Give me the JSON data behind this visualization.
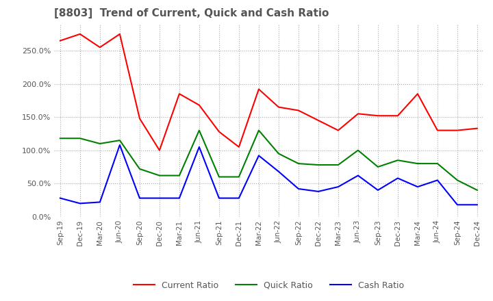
{
  "title": "[8803]  Trend of Current, Quick and Cash Ratio",
  "x_labels": [
    "Sep-19",
    "Dec-19",
    "Mar-20",
    "Jun-20",
    "Sep-20",
    "Dec-20",
    "Mar-21",
    "Jun-21",
    "Sep-21",
    "Dec-21",
    "Mar-22",
    "Jun-22",
    "Sep-22",
    "Dec-22",
    "Mar-23",
    "Jun-23",
    "Sep-23",
    "Dec-23",
    "Mar-24",
    "Jun-24",
    "Sep-24",
    "Dec-24"
  ],
  "current_ratio": [
    265,
    275,
    255,
    275,
    148,
    100,
    185,
    168,
    128,
    105,
    192,
    165,
    160,
    145,
    130,
    155,
    152,
    152,
    185,
    130,
    130,
    133
  ],
  "quick_ratio": [
    118,
    118,
    110,
    115,
    72,
    62,
    62,
    130,
    60,
    60,
    130,
    95,
    80,
    78,
    78,
    100,
    75,
    85,
    80,
    80,
    55,
    40
  ],
  "cash_ratio": [
    28,
    20,
    22,
    108,
    28,
    28,
    28,
    105,
    28,
    28,
    92,
    68,
    42,
    38,
    45,
    62,
    40,
    58,
    45,
    55,
    18,
    18
  ],
  "current_color": "#ff0000",
  "quick_color": "#008000",
  "cash_color": "#0000ff",
  "ylim": [
    0,
    290
  ],
  "yticks": [
    0,
    50,
    100,
    150,
    200,
    250
  ],
  "background_color": "#ffffff",
  "grid_color": "#aaaaaa"
}
